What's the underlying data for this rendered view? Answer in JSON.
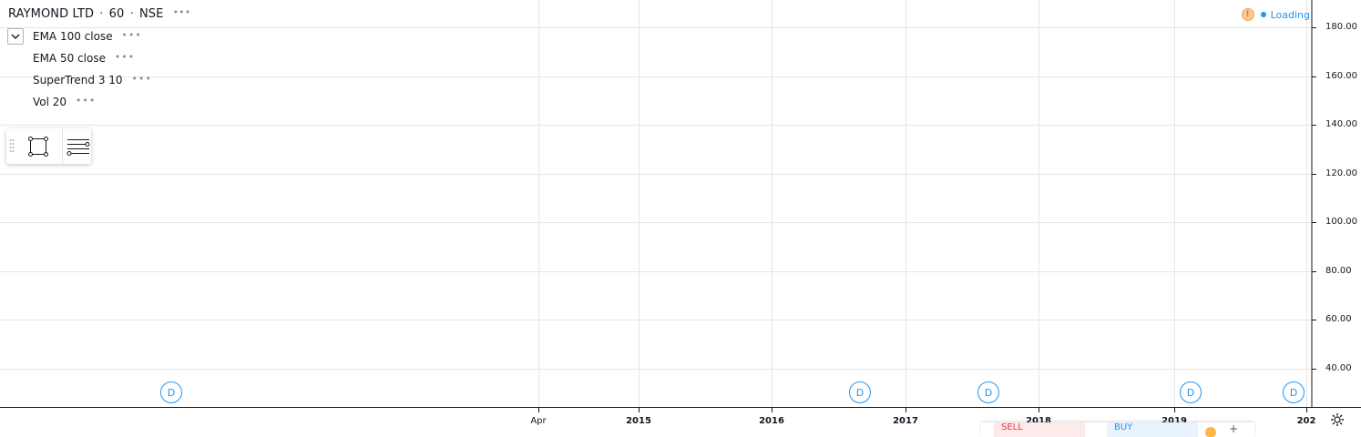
{
  "header": {
    "symbol": "RAYMOND LTD",
    "separator1": "·",
    "interval": "60",
    "separator2": "·",
    "exchange": "NSE",
    "more_dots": "•••"
  },
  "indicators": [
    {
      "label": "EMA 100 close",
      "dots": "•••"
    },
    {
      "label": "EMA 50 close",
      "dots": "•••"
    },
    {
      "label": "SuperTrend 3 10",
      "dots": "•••"
    },
    {
      "label": "Vol 20",
      "dots": "•••"
    }
  ],
  "status": {
    "warning_icon": "!",
    "loading_text": "Loading"
  },
  "price_axis": {
    "labels": [
      "180.00",
      "160.00",
      "140.00",
      "120.00",
      "100.00",
      "80.00",
      "60.00",
      "40.00"
    ]
  },
  "time_axis": {
    "labels": [
      {
        "text": "Apr",
        "bold": false
      },
      {
        "text": "2015",
        "bold": true
      },
      {
        "text": "2016",
        "bold": true
      },
      {
        "text": "2017",
        "bold": true
      },
      {
        "text": "2018",
        "bold": true
      },
      {
        "text": "2019",
        "bold": true
      },
      {
        "text": "202",
        "bold": true
      }
    ]
  },
  "dividend_markers": [
    "D",
    "D",
    "D",
    "D",
    "D"
  ],
  "trade_panel": {
    "sell_label": "SELL",
    "buy_label": "BUY",
    "plus": "+"
  },
  "colors": {
    "accent": "#2196f3",
    "grid": "#e6e6e6",
    "axis": "#131722",
    "warning": "#f7a35c",
    "sell": "#e53935"
  },
  "icons": {
    "collapse": "chevron-down-icon",
    "rectangle_tool": "rectangle-icon",
    "line_tool": "lines-icon",
    "settings": "gear-icon"
  }
}
